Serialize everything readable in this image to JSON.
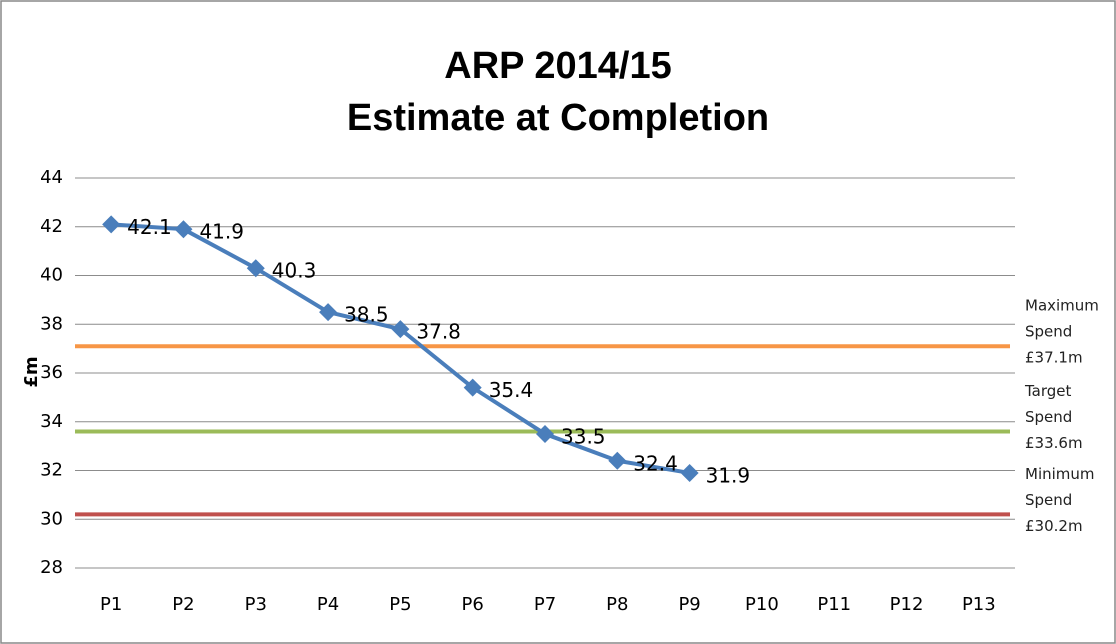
{
  "chart_data": {
    "type": "line",
    "title": "ARP 2014/15",
    "subtitle": "Estimate at Completion",
    "y_label": "£m",
    "categories": [
      "P1",
      "P2",
      "P3",
      "P4",
      "P5",
      "P6",
      "P7",
      "P8",
      "P9",
      "P10",
      "P11",
      "P12",
      "P13"
    ],
    "values": [
      42.1,
      41.9,
      40.3,
      38.5,
      37.8,
      35.4,
      33.5,
      32.4,
      31.9,
      null,
      null,
      null,
      null
    ],
    "color": "#4a7ebb",
    "ylim": [
      28,
      44
    ],
    "yticks": [
      28,
      30,
      32,
      34,
      36,
      38,
      40,
      42,
      44
    ],
    "grid": true,
    "reference_lines": [
      {
        "value": 37.1,
        "color": "#f79646",
        "label": [
          "Maximum",
          "Spend",
          "£37.1m"
        ]
      },
      {
        "value": 33.6,
        "color": "#9bbb59",
        "label": [
          "Target",
          "Spend",
          "£33.6m"
        ]
      },
      {
        "value": 30.2,
        "color": "#c0504d",
        "label": [
          "Minimum",
          "Spend",
          "£30.2m"
        ]
      }
    ]
  }
}
